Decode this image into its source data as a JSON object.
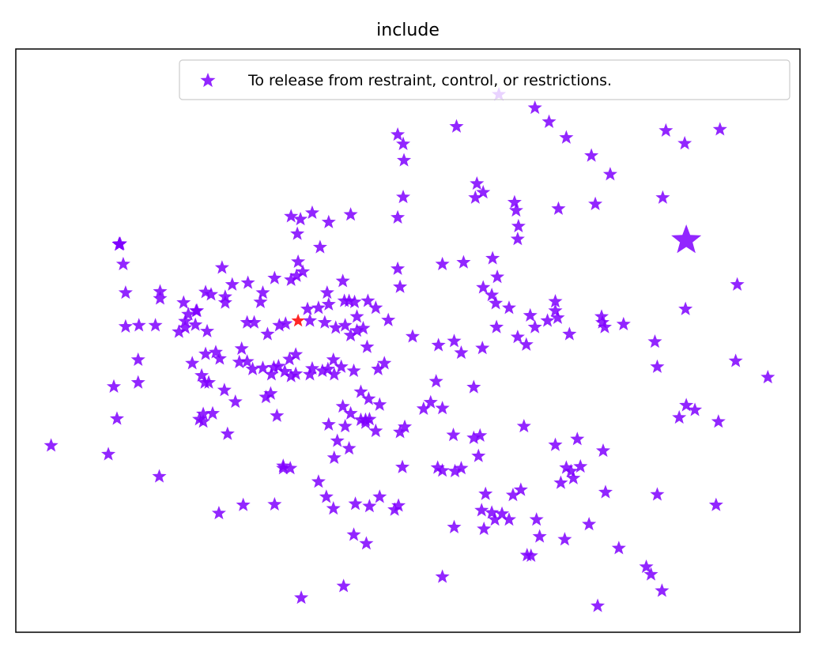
{
  "chart_data": {
    "type": "scatter",
    "title": "include",
    "xlabel": "",
    "ylabel": "",
    "ticks_visible": false,
    "grid": false,
    "legend": {
      "placement": "top-right",
      "entries": [
        "To release from restraint, control, or restrictions."
      ]
    },
    "xlim": [
      0,
      100
    ],
    "ylim": [
      0,
      100
    ],
    "series": [
      {
        "name": "To release from restraint, control, or restrictions.",
        "color": "#7f00ff",
        "marker": "star",
        "points": [
          [
            4.5,
            32.0
          ],
          [
            11.8,
            30.5
          ],
          [
            18.3,
            26.7
          ],
          [
            12.9,
            36.6
          ],
          [
            12.5,
            42.1
          ],
          [
            15.6,
            42.8
          ],
          [
            15.6,
            46.7
          ],
          [
            14.0,
            52.4
          ],
          [
            14.0,
            58.2
          ],
          [
            13.7,
            63.1
          ],
          [
            13.2,
            66.5
          ],
          [
            13.2,
            66.5
          ],
          [
            13.2,
            66.5
          ],
          [
            13.2,
            66.5
          ],
          [
            13.2,
            66.5
          ],
          [
            13.2,
            66.5
          ],
          [
            13.2,
            66.5
          ],
          [
            13.2,
            66.5
          ],
          [
            13.2,
            66.5
          ],
          [
            13.3,
            66.6
          ],
          [
            13.2,
            66.5
          ],
          [
            13.2,
            66.5
          ],
          [
            13.2,
            66.5
          ],
          [
            13.2,
            66.5
          ],
          [
            13.2,
            66.5
          ],
          [
            13.2,
            66.5
          ],
          [
            13.2,
            66.5
          ],
          [
            13.2,
            66.5
          ],
          [
            13.2,
            66.5
          ],
          [
            13.2,
            66.5
          ],
          [
            13.2,
            66.5
          ],
          [
            13.2,
            66.5
          ],
          [
            15.7,
            52.6
          ],
          [
            17.8,
            52.6
          ],
          [
            18.4,
            58.4
          ],
          [
            18.4,
            57.2
          ],
          [
            20.8,
            51.5
          ],
          [
            21.4,
            56.5
          ],
          [
            21.6,
            53.3
          ],
          [
            22.0,
            54.5
          ],
          [
            21.6,
            52.2
          ],
          [
            22.9,
            52.7
          ],
          [
            24.2,
            58.3
          ],
          [
            24.9,
            57.9
          ],
          [
            24.2,
            47.7
          ],
          [
            23.1,
            55.1
          ],
          [
            22.5,
            46.1
          ],
          [
            24.1,
            42.8
          ],
          [
            24.6,
            42.8
          ],
          [
            23.9,
            36.1
          ],
          [
            23.4,
            36.5
          ],
          [
            23.9,
            37.4
          ],
          [
            25.1,
            37.5
          ],
          [
            23.7,
            44.0
          ],
          [
            23.0,
            55.1
          ],
          [
            24.4,
            51.6
          ],
          [
            25.5,
            48.0
          ],
          [
            26.3,
            62.5
          ],
          [
            27.6,
            59.6
          ],
          [
            26.7,
            56.5
          ],
          [
            26.7,
            57.5
          ],
          [
            26.0,
            46.9
          ],
          [
            28.5,
            46.3
          ],
          [
            28.8,
            48.6
          ],
          [
            29.5,
            46.4
          ],
          [
            27.0,
            34.0
          ],
          [
            29.0,
            21.8
          ],
          [
            25.9,
            20.4
          ],
          [
            26.6,
            41.5
          ],
          [
            28.0,
            39.5
          ],
          [
            31.2,
            56.6
          ],
          [
            29.5,
            53.1
          ],
          [
            30.2,
            45.1
          ],
          [
            31.5,
            45.3
          ],
          [
            32.9,
            45.4
          ],
          [
            34.3,
            44.7
          ],
          [
            35.7,
            44.3
          ],
          [
            37.8,
            45.2
          ],
          [
            39.1,
            44.8
          ],
          [
            40.6,
            44.2
          ],
          [
            41.5,
            45.5
          ],
          [
            40.5,
            46.7
          ],
          [
            39.8,
            45.1
          ],
          [
            37.5,
            44.2
          ],
          [
            35.1,
            43.9
          ],
          [
            32.6,
            44.2
          ],
          [
            33.5,
            45.6
          ],
          [
            34.9,
            46.8
          ],
          [
            35.7,
            47.6
          ],
          [
            31.9,
            40.3
          ],
          [
            32.5,
            40.9
          ],
          [
            33.3,
            37.1
          ],
          [
            34.1,
            28.5
          ],
          [
            33.0,
            21.9
          ],
          [
            34.1,
            28.1
          ],
          [
            36.4,
            5.9
          ],
          [
            35.0,
            28.1
          ],
          [
            33.6,
            52.6
          ],
          [
            34.4,
            52.9
          ],
          [
            32.1,
            51.1
          ],
          [
            30.4,
            53.1
          ],
          [
            31.5,
            58.2
          ],
          [
            33.0,
            60.7
          ],
          [
            35.1,
            60.4
          ],
          [
            35.8,
            61.1
          ],
          [
            39.7,
            58.2
          ],
          [
            41.7,
            60.2
          ],
          [
            39.4,
            53.1
          ],
          [
            42.0,
            52.6
          ],
          [
            43.5,
            51.7
          ],
          [
            44.3,
            52.1
          ],
          [
            44.8,
            48.9
          ],
          [
            42.7,
            50.9
          ],
          [
            40.8,
            52.2
          ],
          [
            37.5,
            53.4
          ],
          [
            37.2,
            55.4
          ],
          [
            38.6,
            55.6
          ],
          [
            42.5,
            56.8
          ],
          [
            44.9,
            56.8
          ],
          [
            36.0,
            63.5
          ],
          [
            35.9,
            68.3
          ],
          [
            35.1,
            71.3
          ],
          [
            37.8,
            71.9
          ],
          [
            39.9,
            56.2
          ],
          [
            41.9,
            56.8
          ],
          [
            43.2,
            56.6
          ],
          [
            43.5,
            54.1
          ],
          [
            45.9,
            55.6
          ],
          [
            47.5,
            53.5
          ],
          [
            46.2,
            45.1
          ],
          [
            47.0,
            46.1
          ],
          [
            43.1,
            44.8
          ],
          [
            41.7,
            38.7
          ],
          [
            42.7,
            37.5
          ],
          [
            44.0,
            41.2
          ],
          [
            45.0,
            40.0
          ],
          [
            46.4,
            39.0
          ],
          [
            44.6,
            36.4
          ],
          [
            42.0,
            35.3
          ],
          [
            45.1,
            36.5
          ],
          [
            44.0,
            36.4
          ],
          [
            44.6,
            35.9
          ],
          [
            45.9,
            34.5
          ],
          [
            39.9,
            35.6
          ],
          [
            41.0,
            32.8
          ],
          [
            42.5,
            31.5
          ],
          [
            40.6,
            29.9
          ],
          [
            38.6,
            25.8
          ],
          [
            39.6,
            23.2
          ],
          [
            40.5,
            21.2
          ],
          [
            43.1,
            16.7
          ],
          [
            43.3,
            22.0
          ],
          [
            45.1,
            21.6
          ],
          [
            46.4,
            23.2
          ],
          [
            44.7,
            15.2
          ],
          [
            41.8,
            7.9
          ],
          [
            48.3,
            21.0
          ],
          [
            48.8,
            21.7
          ],
          [
            49.3,
            28.3
          ],
          [
            49.0,
            34.3
          ],
          [
            49.6,
            35.2
          ],
          [
            52.0,
            38.3
          ],
          [
            54.4,
            38.4
          ],
          [
            56.8,
            28.1
          ],
          [
            56.0,
            27.6
          ],
          [
            54.4,
            27.7
          ],
          [
            53.8,
            28.2
          ],
          [
            55.8,
            33.8
          ],
          [
            58.4,
            33.3
          ],
          [
            59.2,
            33.7
          ],
          [
            59.0,
            30.2
          ],
          [
            59.9,
            23.7
          ],
          [
            61.1,
            19.3
          ],
          [
            60.7,
            20.5
          ],
          [
            62.0,
            20.3
          ],
          [
            62.9,
            19.3
          ],
          [
            59.4,
            20.9
          ],
          [
            59.7,
            17.7
          ],
          [
            55.9,
            18.0
          ],
          [
            54.4,
            9.5
          ],
          [
            65.2,
            13.2
          ],
          [
            66.4,
            19.3
          ],
          [
            63.4,
            23.5
          ],
          [
            64.8,
            35.3
          ],
          [
            68.8,
            32.1
          ],
          [
            70.2,
            28.2
          ],
          [
            71.1,
            26.4
          ],
          [
            69.5,
            25.6
          ],
          [
            70.8,
            27.6
          ],
          [
            72.0,
            28.4
          ],
          [
            71.6,
            33.1
          ],
          [
            74.9,
            31.1
          ],
          [
            75.2,
            24.0
          ],
          [
            73.1,
            18.5
          ],
          [
            70.0,
            15.9
          ],
          [
            66.8,
            16.4
          ],
          [
            64.4,
            24.4
          ],
          [
            65.7,
            13.1
          ],
          [
            76.9,
            14.4
          ],
          [
            80.4,
            11.2
          ],
          [
            81.0,
            9.9
          ],
          [
            82.4,
            7.1
          ],
          [
            74.2,
            4.5
          ],
          [
            81.8,
            23.6
          ],
          [
            89.3,
            21.8
          ],
          [
            89.6,
            36.1
          ],
          [
            85.5,
            38.9
          ],
          [
            86.6,
            38.1
          ],
          [
            84.6,
            36.8
          ],
          [
            81.8,
            45.5
          ],
          [
            81.5,
            49.8
          ],
          [
            85.4,
            55.4
          ],
          [
            91.8,
            46.5
          ],
          [
            95.9,
            43.7
          ],
          [
            82.5,
            74.5
          ],
          [
            92.0,
            59.6
          ],
          [
            85.3,
            83.8
          ],
          [
            89.8,
            86.2
          ],
          [
            82.9,
            86.0
          ],
          [
            73.4,
            81.7
          ],
          [
            75.8,
            78.5
          ],
          [
            70.2,
            84.8
          ],
          [
            68.0,
            87.5
          ],
          [
            66.2,
            89.9
          ],
          [
            61.6,
            92.2
          ],
          [
            69.2,
            72.6
          ],
          [
            73.9,
            73.4
          ],
          [
            64.1,
            69.6
          ],
          [
            63.8,
            72.3
          ],
          [
            63.6,
            73.7
          ],
          [
            64.0,
            67.4
          ],
          [
            60.8,
            64.1
          ],
          [
            61.4,
            60.9
          ],
          [
            57.1,
            63.4
          ],
          [
            59.6,
            59.1
          ],
          [
            61.2,
            56.4
          ],
          [
            62.9,
            55.6
          ],
          [
            65.6,
            54.3
          ],
          [
            66.2,
            52.3
          ],
          [
            65.1,
            49.3
          ],
          [
            67.8,
            53.4
          ],
          [
            68.8,
            56.7
          ],
          [
            64.0,
            50.6
          ],
          [
            68.8,
            55.1
          ],
          [
            69.1,
            53.9
          ],
          [
            70.6,
            51.1
          ],
          [
            74.8,
            53.1
          ],
          [
            77.5,
            52.8
          ],
          [
            74.7,
            54.1
          ],
          [
            75.1,
            52.3
          ],
          [
            61.3,
            52.3
          ],
          [
            59.5,
            48.7
          ],
          [
            58.4,
            42.0
          ],
          [
            56.8,
            47.9
          ],
          [
            55.9,
            49.9
          ],
          [
            53.9,
            49.2
          ],
          [
            53.6,
            43.0
          ],
          [
            52.9,
            39.4
          ],
          [
            50.6,
            50.7
          ],
          [
            49.0,
            59.2
          ],
          [
            48.7,
            62.3
          ],
          [
            49.4,
            74.6
          ],
          [
            49.5,
            80.9
          ],
          [
            49.4,
            83.7
          ],
          [
            48.7,
            85.3
          ],
          [
            56.2,
            86.7
          ],
          [
            59.6,
            75.4
          ],
          [
            58.8,
            76.9
          ],
          [
            58.6,
            74.5
          ],
          [
            60.7,
            57.8
          ],
          [
            54.4,
            63.1
          ],
          [
            48.7,
            71.1
          ],
          [
            42.7,
            71.6
          ],
          [
            39.9,
            70.3
          ],
          [
            38.8,
            66.0
          ],
          [
            36.3,
            70.8
          ],
          [
            36.6,
            61.8
          ],
          [
            29.6,
            59.9
          ]
        ]
      }
    ],
    "highlighted_points": [
      {
        "x": 85.5,
        "y": 67.2,
        "color": "#7f00ff",
        "marker": "star-large"
      },
      {
        "x": 36.0,
        "y": 53.4,
        "color": "#ff0000",
        "marker": "star-small"
      }
    ]
  }
}
